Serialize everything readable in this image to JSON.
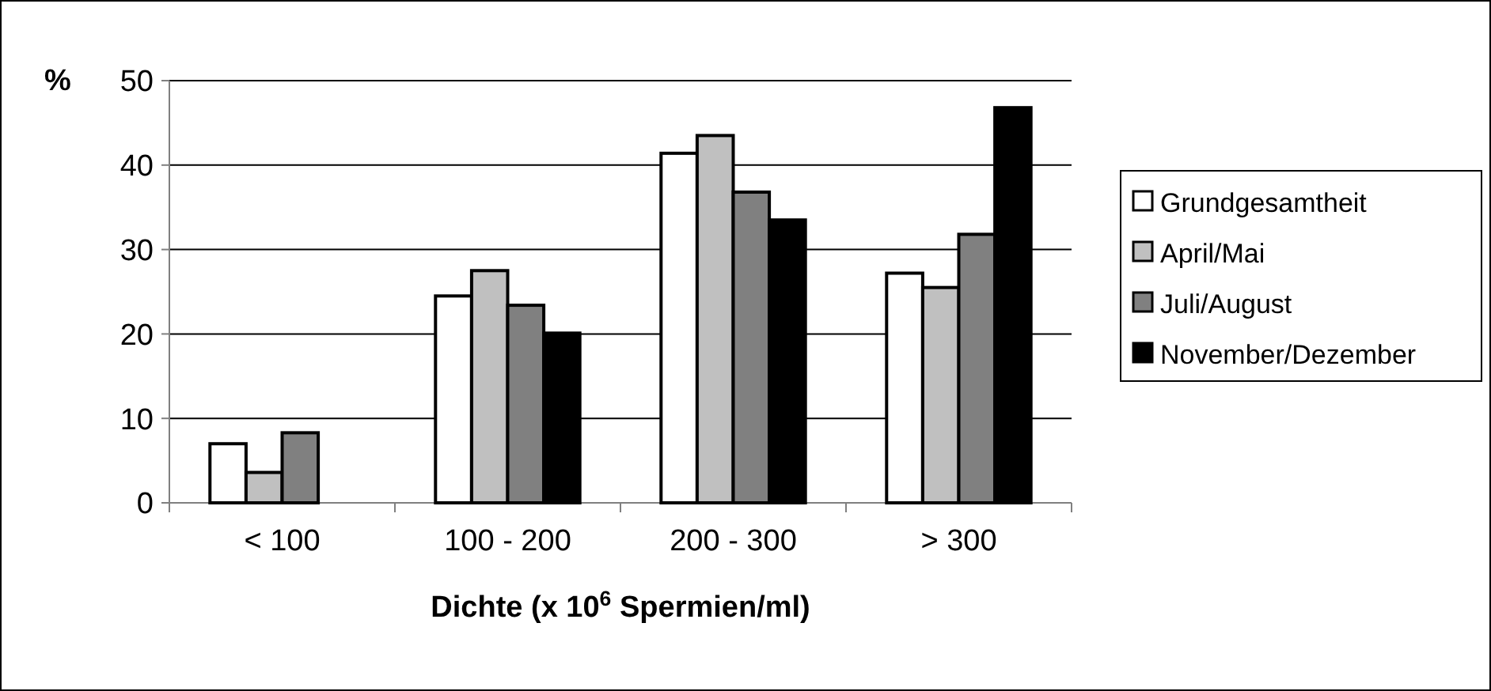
{
  "chart_data": {
    "type": "bar",
    "ylabel": "%",
    "xlabel": "Dichte (x 10$^{6}$ Spermien/ml)",
    "categories": [
      "< 100",
      "100 - 200",
      "200 - 300",
      "> 300"
    ],
    "series": [
      {
        "name": "Grundgesamtheit",
        "color": "#ffffff",
        "values": [
          7.0,
          24.5,
          41.4,
          27.2
        ]
      },
      {
        "name": "April/Mai",
        "color": "#c0c0c0",
        "values": [
          3.6,
          27.5,
          43.5,
          25.5
        ]
      },
      {
        "name": "Juli/August",
        "color": "#808080",
        "values": [
          8.3,
          23.4,
          36.8,
          31.8
        ]
      },
      {
        "name": "November/Dezember",
        "color": "#000000",
        "values": [
          null,
          20.1,
          33.5,
          46.8
        ]
      }
    ],
    "ylim": [
      0,
      50
    ],
    "yticks": [
      0,
      10,
      20,
      30,
      40,
      50
    ],
    "grid": "y",
    "legend": "right"
  }
}
